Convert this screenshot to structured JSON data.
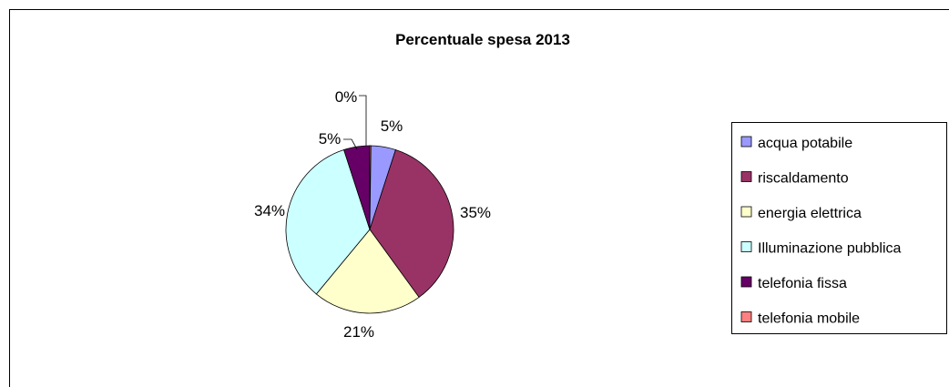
{
  "chart_data": {
    "type": "pie",
    "title": "Percentuale spesa 2013",
    "categories": [
      "acqua potabile",
      "riscaldamento",
      "energia elettrica",
      "Illuminazione pubblica",
      "telefonia fissa",
      "telefonia mobile"
    ],
    "values": [
      5,
      35,
      21,
      34,
      5,
      0
    ],
    "value_labels": [
      "5%",
      "35%",
      "21%",
      "34%",
      "5%",
      "0%"
    ],
    "colors": [
      "#9999FF",
      "#993366",
      "#FFFFCC",
      "#CCFFFF",
      "#660066",
      "#FF8080"
    ],
    "legend_position": "right"
  }
}
